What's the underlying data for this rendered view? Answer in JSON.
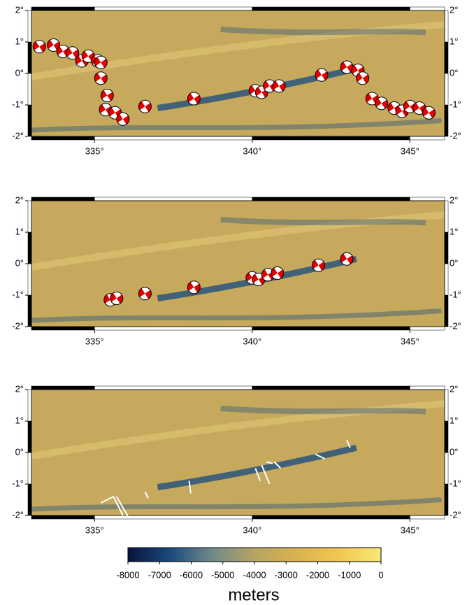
{
  "xlim": [
    333,
    346.1
  ],
  "ylim": [
    -2,
    2
  ],
  "xticks": [
    {
      "value": 335,
      "label": "335°"
    },
    {
      "value": 340,
      "label": "340°"
    },
    {
      "value": 345,
      "label": "345°"
    }
  ],
  "yticks": [
    {
      "value": 2,
      "label": "2°"
    },
    {
      "value": 1,
      "label": "1°"
    },
    {
      "value": 0,
      "label": "0°"
    },
    {
      "value": -1,
      "label": "-1°"
    },
    {
      "value": -2,
      "label": "-2°"
    }
  ],
  "panels": [
    {
      "events": [
        [
          333.25,
          0.85
        ],
        [
          333.7,
          0.9
        ],
        [
          334.0,
          0.7
        ],
        [
          334.3,
          0.65
        ],
        [
          334.6,
          0.4
        ],
        [
          334.8,
          0.55
        ],
        [
          335.1,
          0.4
        ],
        [
          335.2,
          0.35
        ],
        [
          335.2,
          -0.15
        ],
        [
          335.4,
          -0.7
        ],
        [
          335.35,
          -1.15
        ],
        [
          335.65,
          -1.25
        ],
        [
          335.9,
          -1.45
        ],
        [
          336.6,
          -1.05
        ],
        [
          338.15,
          -0.8
        ],
        [
          340.1,
          -0.55
        ],
        [
          340.3,
          -0.6
        ],
        [
          340.55,
          -0.4
        ],
        [
          340.85,
          -0.4
        ],
        [
          342.2,
          -0.05
        ],
        [
          343.0,
          0.2
        ],
        [
          343.35,
          0.1
        ],
        [
          343.5,
          -0.15
        ],
        [
          343.8,
          -0.8
        ],
        [
          344.1,
          -0.95
        ],
        [
          344.5,
          -1.1
        ],
        [
          344.75,
          -1.2
        ],
        [
          345.0,
          -1.05
        ],
        [
          345.3,
          -1.1
        ],
        [
          345.6,
          -1.25
        ]
      ]
    },
    {
      "events": [
        [
          335.5,
          -1.15
        ],
        [
          335.7,
          -1.1
        ],
        [
          336.6,
          -0.95
        ],
        [
          338.15,
          -0.75
        ],
        [
          340.0,
          -0.45
        ],
        [
          340.2,
          -0.5
        ],
        [
          340.5,
          -0.35
        ],
        [
          340.8,
          -0.3
        ],
        [
          342.1,
          -0.05
        ],
        [
          343.0,
          0.15
        ]
      ]
    },
    {
      "vectors": [
        [
          335.2,
          -1.6,
          335.6,
          -1.4
        ],
        [
          335.7,
          -1.4,
          336.1,
          -2.1
        ],
        [
          335.6,
          -1.4,
          335.9,
          -2.0
        ],
        [
          336.6,
          -1.25,
          336.7,
          -1.45
        ],
        [
          338.0,
          -0.9,
          338.05,
          -1.3
        ],
        [
          340.1,
          -0.5,
          340.25,
          -0.9
        ],
        [
          340.3,
          -0.4,
          340.55,
          -1.0
        ],
        [
          340.7,
          -0.3,
          340.9,
          -0.5
        ],
        [
          342.0,
          -0.05,
          342.3,
          -0.2
        ],
        [
          343.0,
          0.4,
          343.1,
          0.15
        ],
        [
          340.45,
          -0.3,
          340.65,
          -0.35
        ]
      ]
    }
  ],
  "colorbar": {
    "lim": [
      -8000,
      0
    ],
    "ticks": [
      -8000,
      -7000,
      -6000,
      -5000,
      -4000,
      -3000,
      -2000,
      -1000,
      0
    ],
    "colors": [
      "#08143c",
      "#1b4a7c",
      "#6f8a8a",
      "#b8a464",
      "#d8b24e",
      "#f0c850",
      "#f8e878"
    ],
    "label": "meters"
  }
}
